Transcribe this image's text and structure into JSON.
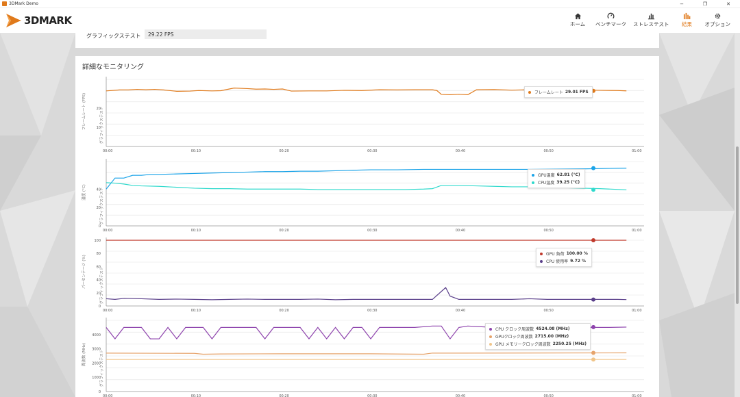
{
  "window": {
    "title": "3DMark Demo",
    "controls": [
      "−",
      "❐",
      "✕"
    ]
  },
  "logo_text": "3DMARK",
  "nav": [
    {
      "label": "ホーム",
      "icon": "home-icon",
      "active": false
    },
    {
      "label": "ベンチマーク",
      "icon": "gauge-icon",
      "active": false
    },
    {
      "label": "ストレステスト",
      "icon": "stress-bars-icon",
      "active": false
    },
    {
      "label": "結果",
      "icon": "results-bars-icon",
      "active": true
    },
    {
      "label": "オプション",
      "icon": "gear-icon",
      "active": false
    }
  ],
  "colors": {
    "accent": "#e07a1b",
    "fps": "#e07a1b",
    "gpu_temp": "#1aa3e8",
    "cpu_temp": "#2fd9cc",
    "gpu_load": "#c0392b",
    "cpu_load": "#5a3f8a",
    "black": "#111111",
    "cpu_clock": "#8e44ad",
    "gpu_clock": "#e6a36b",
    "gpu_mem_clock": "#f0c58a"
  },
  "result": {
    "label": "グラフィックステスト",
    "value": "29.22 FPS"
  },
  "monitor": {
    "title": "詳細なモニタリング"
  },
  "x_ticks": [
    "00:00",
    "00:10",
    "00:20",
    "00:30",
    "00:40",
    "00:50",
    "01:00"
  ],
  "scroll": {
    "position": 0.55
  },
  "chart_data": [
    {
      "type": "line",
      "ylabel": "フレームレート (FPS)",
      "side_label": "グラフィックステスト",
      "ylim": [
        0,
        35
      ],
      "yticks": [
        "10",
        "20"
      ],
      "ytick_values": [
        10,
        20
      ],
      "series": [
        {
          "name": "フレームレート",
          "value_label": "29.01 FPS",
          "color_key": "fps",
          "x": [
            0,
            1.5,
            2.5,
            3.5,
            4.5,
            5.5,
            6.5,
            8,
            9.5,
            10.5,
            12,
            13,
            14.5,
            16,
            17,
            18,
            19,
            20,
            21,
            23,
            25,
            27,
            29,
            31,
            33,
            35,
            37,
            37.5,
            38,
            39,
            40,
            41,
            42,
            44,
            46,
            48,
            49,
            50,
            52,
            54,
            56,
            58,
            59
          ],
          "y": [
            29,
            29.5,
            29.5,
            29.8,
            29.6,
            29.8,
            29.5,
            28.8,
            28.9,
            29.2,
            29,
            29.1,
            30.5,
            30.2,
            29.9,
            30,
            29.8,
            30,
            28.9,
            29,
            29,
            29.3,
            29.2,
            29.6,
            29.5,
            29.6,
            29.6,
            29.2,
            27.2,
            27,
            27.3,
            27,
            29.6,
            29.7,
            29.4,
            29.6,
            29.7,
            29.2,
            29.4,
            29.5,
            29.3,
            29.2,
            29.01
          ]
        }
      ],
      "legend_pos": "right"
    },
    {
      "type": "line",
      "ylabel": "温度 (°C)",
      "side_label": "グラフィックステスト",
      "ylim": [
        0,
        70
      ],
      "yticks": [
        "0",
        "20",
        "40"
      ],
      "ytick_values": [
        0,
        20,
        40
      ],
      "series": [
        {
          "name": "GPU温度",
          "value_label": "62.81 (°C)",
          "color_key": "gpu_temp",
          "x": [
            0,
            1,
            2,
            3,
            4,
            5,
            6,
            8,
            10,
            12,
            14,
            16,
            18,
            20,
            22,
            24,
            26,
            28,
            30,
            33,
            36,
            40,
            44,
            48,
            50,
            52,
            54,
            57,
            59
          ],
          "y": [
            40,
            52,
            52,
            55,
            55,
            56,
            56,
            56.5,
            57,
            57.5,
            58,
            58.5,
            59,
            59,
            59.5,
            59.5,
            60,
            60.5,
            61,
            61,
            61.5,
            61.5,
            61.5,
            61.5,
            61.6,
            61.8,
            62,
            62.5,
            62.81
          ]
        },
        {
          "name": "CPU温度",
          "value_label": "39.25 (°C)",
          "color_key": "cpu_temp",
          "x": [
            0,
            1,
            2,
            3,
            4,
            6,
            8,
            10,
            12,
            14,
            16,
            18,
            20,
            22,
            24,
            26,
            28,
            30,
            32,
            34,
            36,
            37,
            38,
            40,
            42,
            44,
            46,
            48,
            50,
            52,
            54,
            56,
            59
          ],
          "y": [
            47,
            46.5,
            45.5,
            44,
            43.5,
            43,
            42,
            41,
            40.5,
            40.5,
            40,
            40,
            40,
            40,
            39.5,
            39.5,
            39.5,
            39.5,
            39.5,
            39.5,
            40,
            40.5,
            44,
            44,
            43.5,
            43,
            42.5,
            42.5,
            42,
            41.5,
            41,
            40.5,
            39.25
          ]
        }
      ],
      "legend_pos": "right"
    },
    {
      "type": "line",
      "ylabel": "パーセンテージ (%)",
      "side_label": "グラフィックステスト",
      "ylim": [
        0,
        100
      ],
      "yticks": [
        "0",
        "20",
        "40",
        "60",
        "80",
        "100"
      ],
      "ytick_values": [
        0,
        20,
        40,
        60,
        80,
        100
      ],
      "series": [
        {
          "name": "GPU 負荷",
          "value_label": "100.00 %",
          "color_key": "gpu_load",
          "x": [
            0,
            59
          ],
          "y": [
            100,
            100
          ]
        },
        {
          "name": "CPU 使用率",
          "value_label": "9.72 %",
          "color_key": "cpu_load",
          "x": [
            0,
            1,
            2,
            4,
            6,
            8,
            10,
            12,
            14,
            16,
            18,
            20,
            22,
            24,
            26,
            28,
            30,
            32,
            34,
            36,
            37,
            38.5,
            39,
            40,
            42,
            44,
            46,
            48,
            50,
            52,
            54,
            56,
            58,
            59
          ],
          "y": [
            11,
            10,
            11.5,
            11,
            10,
            10.5,
            10,
            9.5,
            10,
            10.5,
            10,
            10,
            10,
            10.5,
            9.5,
            10,
            10,
            10,
            10,
            10,
            10,
            28,
            15,
            10,
            10,
            10,
            10,
            11,
            10,
            10,
            10,
            10,
            10,
            9.72
          ]
        }
      ],
      "legend_pos": "right"
    },
    {
      "type": "line",
      "ylabel": "周波数 (MHz)",
      "side_label": "グラフィックステスト",
      "ylim": [
        0,
        5000
      ],
      "yticks": [
        "0",
        "1000",
        "2000",
        "3000",
        "4000"
      ],
      "ytick_values": [
        0,
        1000,
        2000,
        3000,
        4000
      ],
      "series": [
        {
          "name": "CPU クロック周波数",
          "value_label": "4524.08 (MHz)",
          "color_key": "cpu_clock",
          "x": [
            0,
            1,
            2,
            4,
            5,
            6,
            7,
            8,
            9,
            10,
            11,
            12,
            13,
            14,
            15,
            17,
            18,
            19,
            20,
            21,
            22,
            23,
            24,
            25,
            26,
            27,
            28,
            29,
            30,
            31,
            32,
            33,
            35,
            37,
            38,
            39,
            40,
            41,
            44,
            47,
            50,
            53,
            55,
            57,
            59
          ],
          "y": [
            4500,
            3700,
            4500,
            4500,
            3700,
            3700,
            4500,
            3700,
            4500,
            4500,
            4500,
            3700,
            4500,
            4500,
            4500,
            4500,
            3700,
            4500,
            4500,
            4500,
            4500,
            3700,
            4500,
            3700,
            4500,
            3700,
            4500,
            4500,
            3700,
            4500,
            4500,
            4500,
            4500,
            4600,
            4600,
            3700,
            4500,
            4600,
            4500,
            4500,
            4500,
            4500,
            4500,
            4500,
            4524.08
          ]
        },
        {
          "name": "GPUクロック周波数",
          "value_label": "2715.00 (MHz)",
          "color_key": "gpu_clock",
          "x": [
            0,
            10,
            11,
            13,
            20,
            30,
            36,
            37,
            40,
            59
          ],
          "y": [
            2700,
            2680,
            2620,
            2640,
            2650,
            2650,
            2620,
            2700,
            2700,
            2715
          ]
        },
        {
          "name": "GPU メモリークロック周波数",
          "value_label": "2250.25 (MHz)",
          "color_key": "gpu_mem_clock",
          "x": [
            0,
            59
          ],
          "y": [
            2250,
            2250.25
          ]
        }
      ],
      "legend_pos": "right"
    }
  ]
}
